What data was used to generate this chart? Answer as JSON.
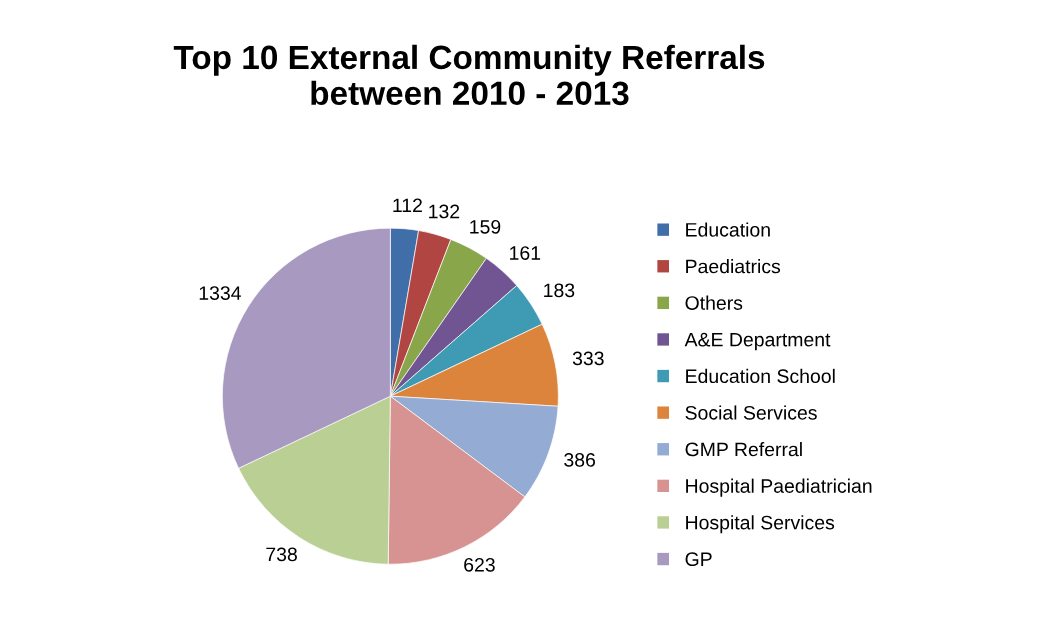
{
  "chart_data": {
    "type": "pie",
    "title": "Top 10 External Community Referrals\nbetween 2010 - 2013",
    "categories": [
      "Education",
      "Paediatrics",
      "Others",
      "A&E Department",
      "Education School",
      "Social Services",
      "GMP Referral",
      "Hospital Paediatrician",
      "Hospital Services",
      "GP"
    ],
    "values": [
      112,
      132,
      159,
      161,
      183,
      333,
      386,
      623,
      738,
      1334
    ],
    "colors": [
      "#3f6ea8",
      "#b04541",
      "#8aa64b",
      "#715592",
      "#3e9bb3",
      "#dc843b",
      "#94abd3",
      "#d69392",
      "#b9cf94",
      "#a899c0"
    ],
    "data_labels": true,
    "legend": "right"
  }
}
